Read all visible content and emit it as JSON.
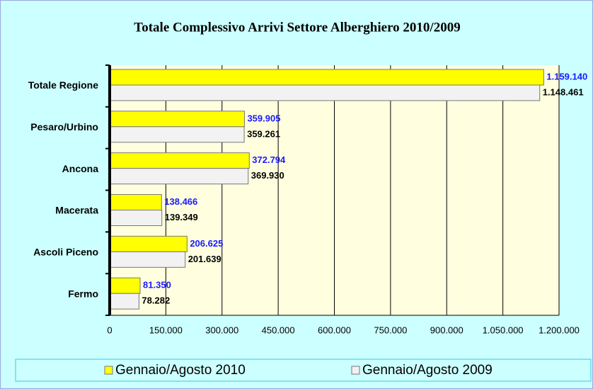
{
  "chart_data": {
    "type": "bar",
    "orientation": "horizontal",
    "title": "Totale Complessivo Arrivi Settore Alberghiero 2010/2009",
    "categories": [
      "Totale Regione",
      "Pesaro/Urbino",
      "Ancona",
      "Macerata",
      "Ascoli Piceno",
      "Fermo"
    ],
    "series": [
      {
        "name": "Gennaio/Agosto 2010",
        "color": "#ffff00",
        "values": [
          1159140,
          359905,
          372794,
          138466,
          206625,
          81350
        ],
        "value_labels": [
          "1.159.140",
          "359.905",
          "372.794",
          "138.466",
          "206.625",
          "81.350"
        ]
      },
      {
        "name": "Gennaio/Agosto 2009",
        "color": "#f2f2f2",
        "values": [
          1148461,
          359261,
          369930,
          139349,
          201639,
          78282
        ],
        "value_labels": [
          "1.148.461",
          "359.261",
          "369.930",
          "139.349",
          "201.639",
          "78.282"
        ]
      }
    ],
    "xlim": [
      0,
      1200000
    ],
    "xticks": [
      0,
      {
        "value": 150000,
        "label": "150.000"
      },
      {
        "value": 300000,
        "label": "300.000"
      },
      {
        "value": 450000,
        "label": "450.000"
      },
      {
        "value": 600000,
        "label": "600.000"
      },
      {
        "value": 750000,
        "label": "750.000"
      },
      {
        "value": 900000,
        "label": "900.000"
      },
      {
        "value": 1050000,
        "label": "1.050.000"
      },
      {
        "value": 1200000,
        "label": "1.200.000"
      }
    ],
    "grid": true,
    "legend": "bottom"
  }
}
